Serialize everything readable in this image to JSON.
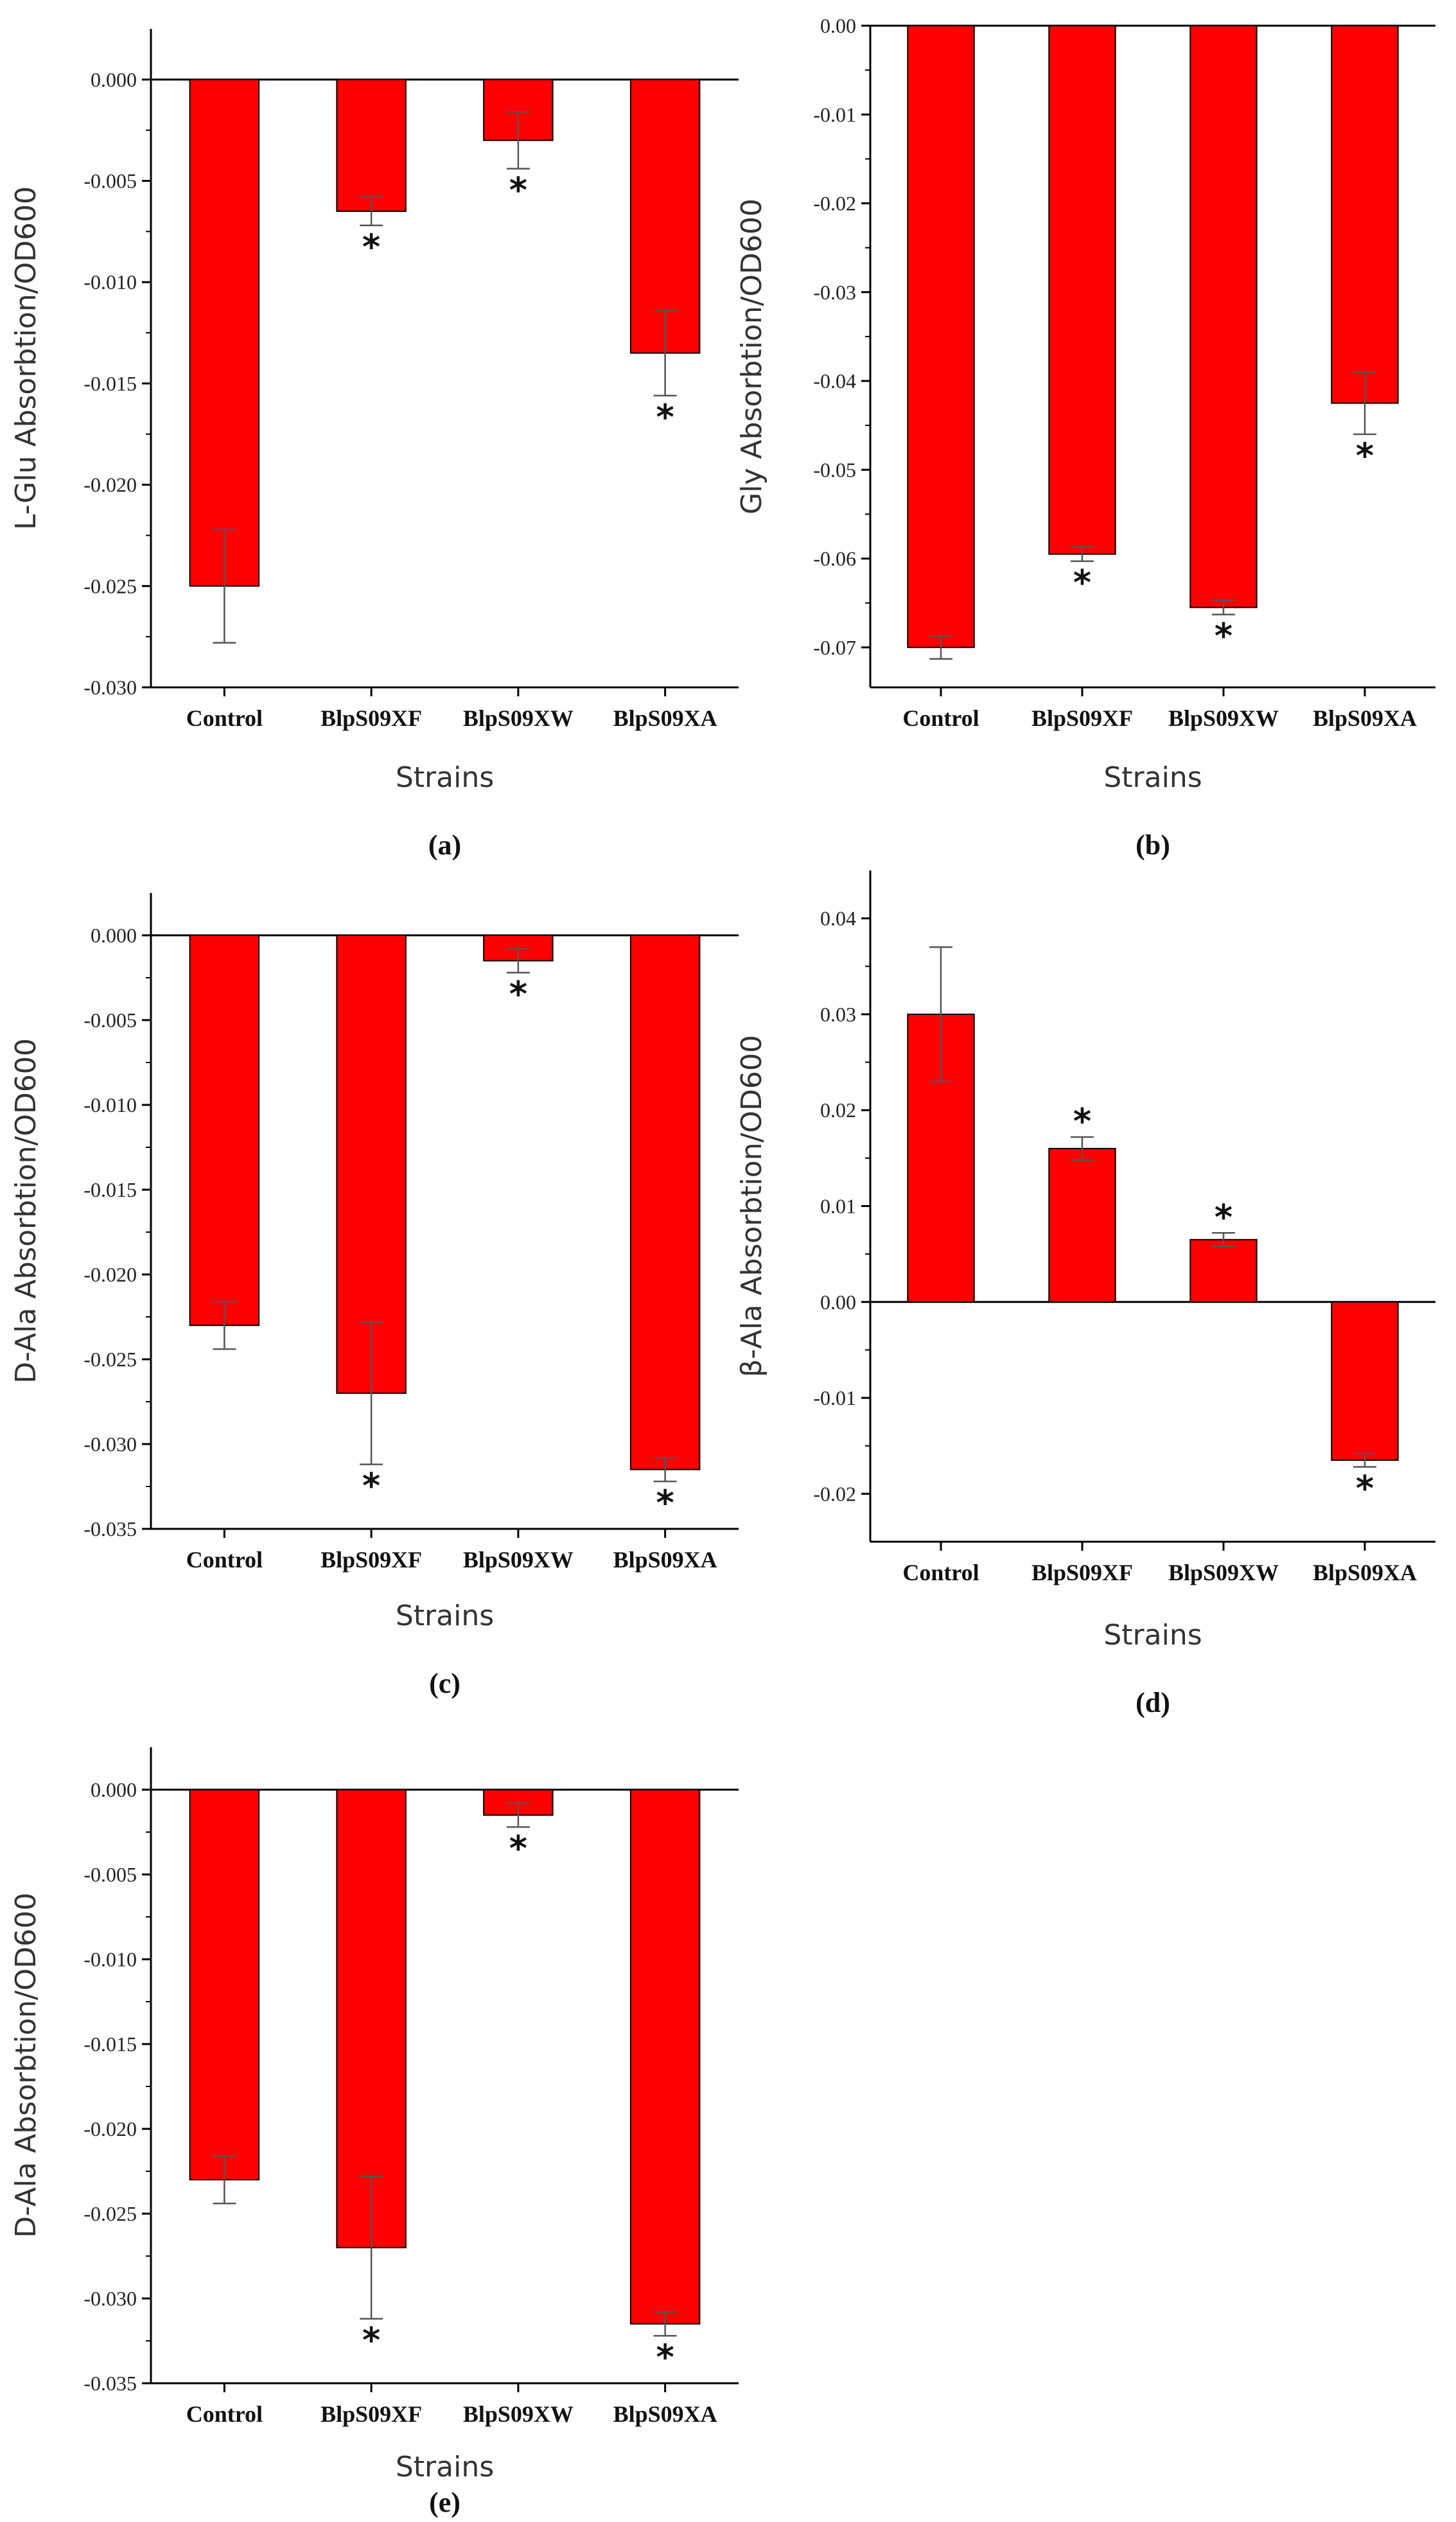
{
  "chart_data": [
    {
      "type": "bar",
      "panel": "(a)",
      "categories": [
        "Control",
        "BlpS09XF",
        "BlpS09XW",
        "BlpS09XA"
      ],
      "values": [
        -0.025,
        -0.0065,
        -0.003,
        -0.0135
      ],
      "errors": [
        0.0028,
        0.0007,
        0.0014,
        0.0021
      ],
      "significant": [
        false,
        true,
        true,
        true
      ],
      "ylabel": "L-Glu Absorbtion/OD600",
      "xlabel": "Strains",
      "ylim": [
        -0.03,
        0.0025
      ],
      "yticks": [
        0.0,
        -0.005,
        -0.01,
        -0.015,
        -0.02,
        -0.025,
        -0.03
      ],
      "ytick_labels": [
        "0.000",
        "-0.005",
        "-0.010",
        "-0.015",
        "-0.020",
        "-0.025",
        "-0.030"
      ],
      "color": "#ff0000"
    },
    {
      "type": "bar",
      "panel": "(b)",
      "categories": [
        "Control",
        "BlpS09XF",
        "BlpS09XW",
        "BlpS09XA"
      ],
      "values": [
        -0.07,
        -0.0595,
        -0.0655,
        -0.0425
      ],
      "errors": [
        0.0013,
        0.0008,
        0.0008,
        0.0035
      ],
      "significant": [
        false,
        true,
        true,
        true
      ],
      "ylabel": "Gly Absorbtion/OD600",
      "xlabel": "Strains",
      "ylim": [
        -0.0745,
        0.0
      ],
      "yticks": [
        0.0,
        -0.01,
        -0.02,
        -0.03,
        -0.04,
        -0.05,
        -0.06,
        -0.07
      ],
      "ytick_labels": [
        "0.00",
        "-0.01",
        "-0.02",
        "-0.03",
        "-0.04",
        "-0.05",
        "-0.06",
        "-0.07"
      ],
      "color": "#ff0000"
    },
    {
      "type": "bar",
      "panel": "(c)",
      "categories": [
        "Control",
        "BlpS09XF",
        "BlpS09XW",
        "BlpS09XA"
      ],
      "values": [
        -0.023,
        -0.027,
        -0.0015,
        -0.0315
      ],
      "errors": [
        0.0014,
        0.0042,
        0.0007,
        0.0007
      ],
      "significant": [
        false,
        true,
        true,
        true
      ],
      "ylabel": "D-Ala Absorbtion/OD600",
      "xlabel": "Strains",
      "ylim": [
        -0.035,
        0.0025
      ],
      "yticks": [
        0.0,
        -0.005,
        -0.01,
        -0.015,
        -0.02,
        -0.025,
        -0.03,
        -0.035
      ],
      "ytick_labels": [
        "0.000",
        "-0.005",
        "-0.010",
        "-0.015",
        "-0.020",
        "-0.025",
        "-0.030",
        "-0.035"
      ],
      "color": "#ff0000"
    },
    {
      "type": "bar",
      "panel": "(d)",
      "categories": [
        "Control",
        "BlpS09XF",
        "BlpS09XW",
        "BlpS09XA"
      ],
      "values": [
        0.03,
        0.016,
        0.0065,
        -0.0165
      ],
      "errors": [
        0.007,
        0.0012,
        0.0007,
        0.0007
      ],
      "significant": [
        false,
        true,
        true,
        true
      ],
      "ylabel": "β-Ala Absorbtion/OD600",
      "xlabel": "Strains",
      "ylim": [
        -0.025,
        0.045
      ],
      "yticks": [
        0.04,
        0.03,
        0.02,
        0.01,
        0.0,
        -0.01,
        -0.02
      ],
      "ytick_labels": [
        "0.04",
        "0.03",
        "0.02",
        "0.01",
        "0.00",
        "-0.01",
        "-0.02"
      ],
      "color": "#ff0000"
    },
    {
      "type": "bar",
      "panel": "(e)",
      "categories": [
        "Control",
        "BlpS09XF",
        "BlpS09XW",
        "BlpS09XA"
      ],
      "values": [
        -0.023,
        -0.027,
        -0.0015,
        -0.0315
      ],
      "errors": [
        0.0014,
        0.0042,
        0.0007,
        0.0007
      ],
      "significant": [
        false,
        true,
        true,
        true
      ],
      "ylabel": "D-Ala Absorbtion/OD600",
      "xlabel": "Strains",
      "ylim": [
        -0.035,
        0.0025
      ],
      "yticks": [
        0.0,
        -0.005,
        -0.01,
        -0.015,
        -0.02,
        -0.025,
        -0.03,
        -0.035
      ],
      "ytick_labels": [
        "0.000",
        "-0.005",
        "-0.010",
        "-0.015",
        "-0.020",
        "-0.025",
        "-0.030",
        "-0.035"
      ],
      "color": "#ff0000"
    }
  ],
  "significance_marker": "*"
}
